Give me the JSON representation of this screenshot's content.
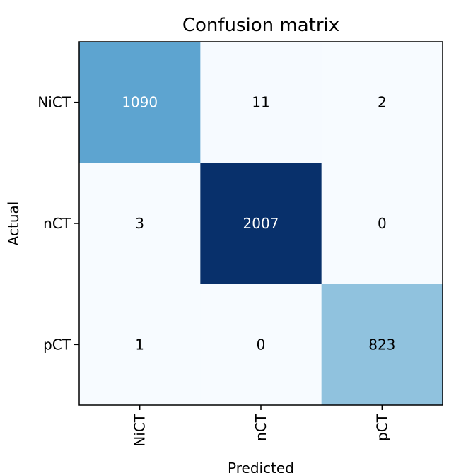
{
  "chart_data": {
    "type": "heatmap",
    "title": "Confusion matrix",
    "xlabel": "Predicted",
    "ylabel": "Actual",
    "x_categories": [
      "NiCT",
      "nCT",
      "pCT"
    ],
    "y_categories": [
      "NiCT",
      "nCT",
      "pCT"
    ],
    "values": [
      [
        1090,
        11,
        2
      ],
      [
        3,
        2007,
        0
      ],
      [
        1,
        0,
        823
      ]
    ],
    "colormap": "Blues",
    "colors": {
      "low": "#f7fbff",
      "mid": "#5ca4d0",
      "high": "#08306b",
      "text_light": "#ffffff",
      "text_dark": "#000000"
    },
    "legend": "none",
    "grid": false
  }
}
